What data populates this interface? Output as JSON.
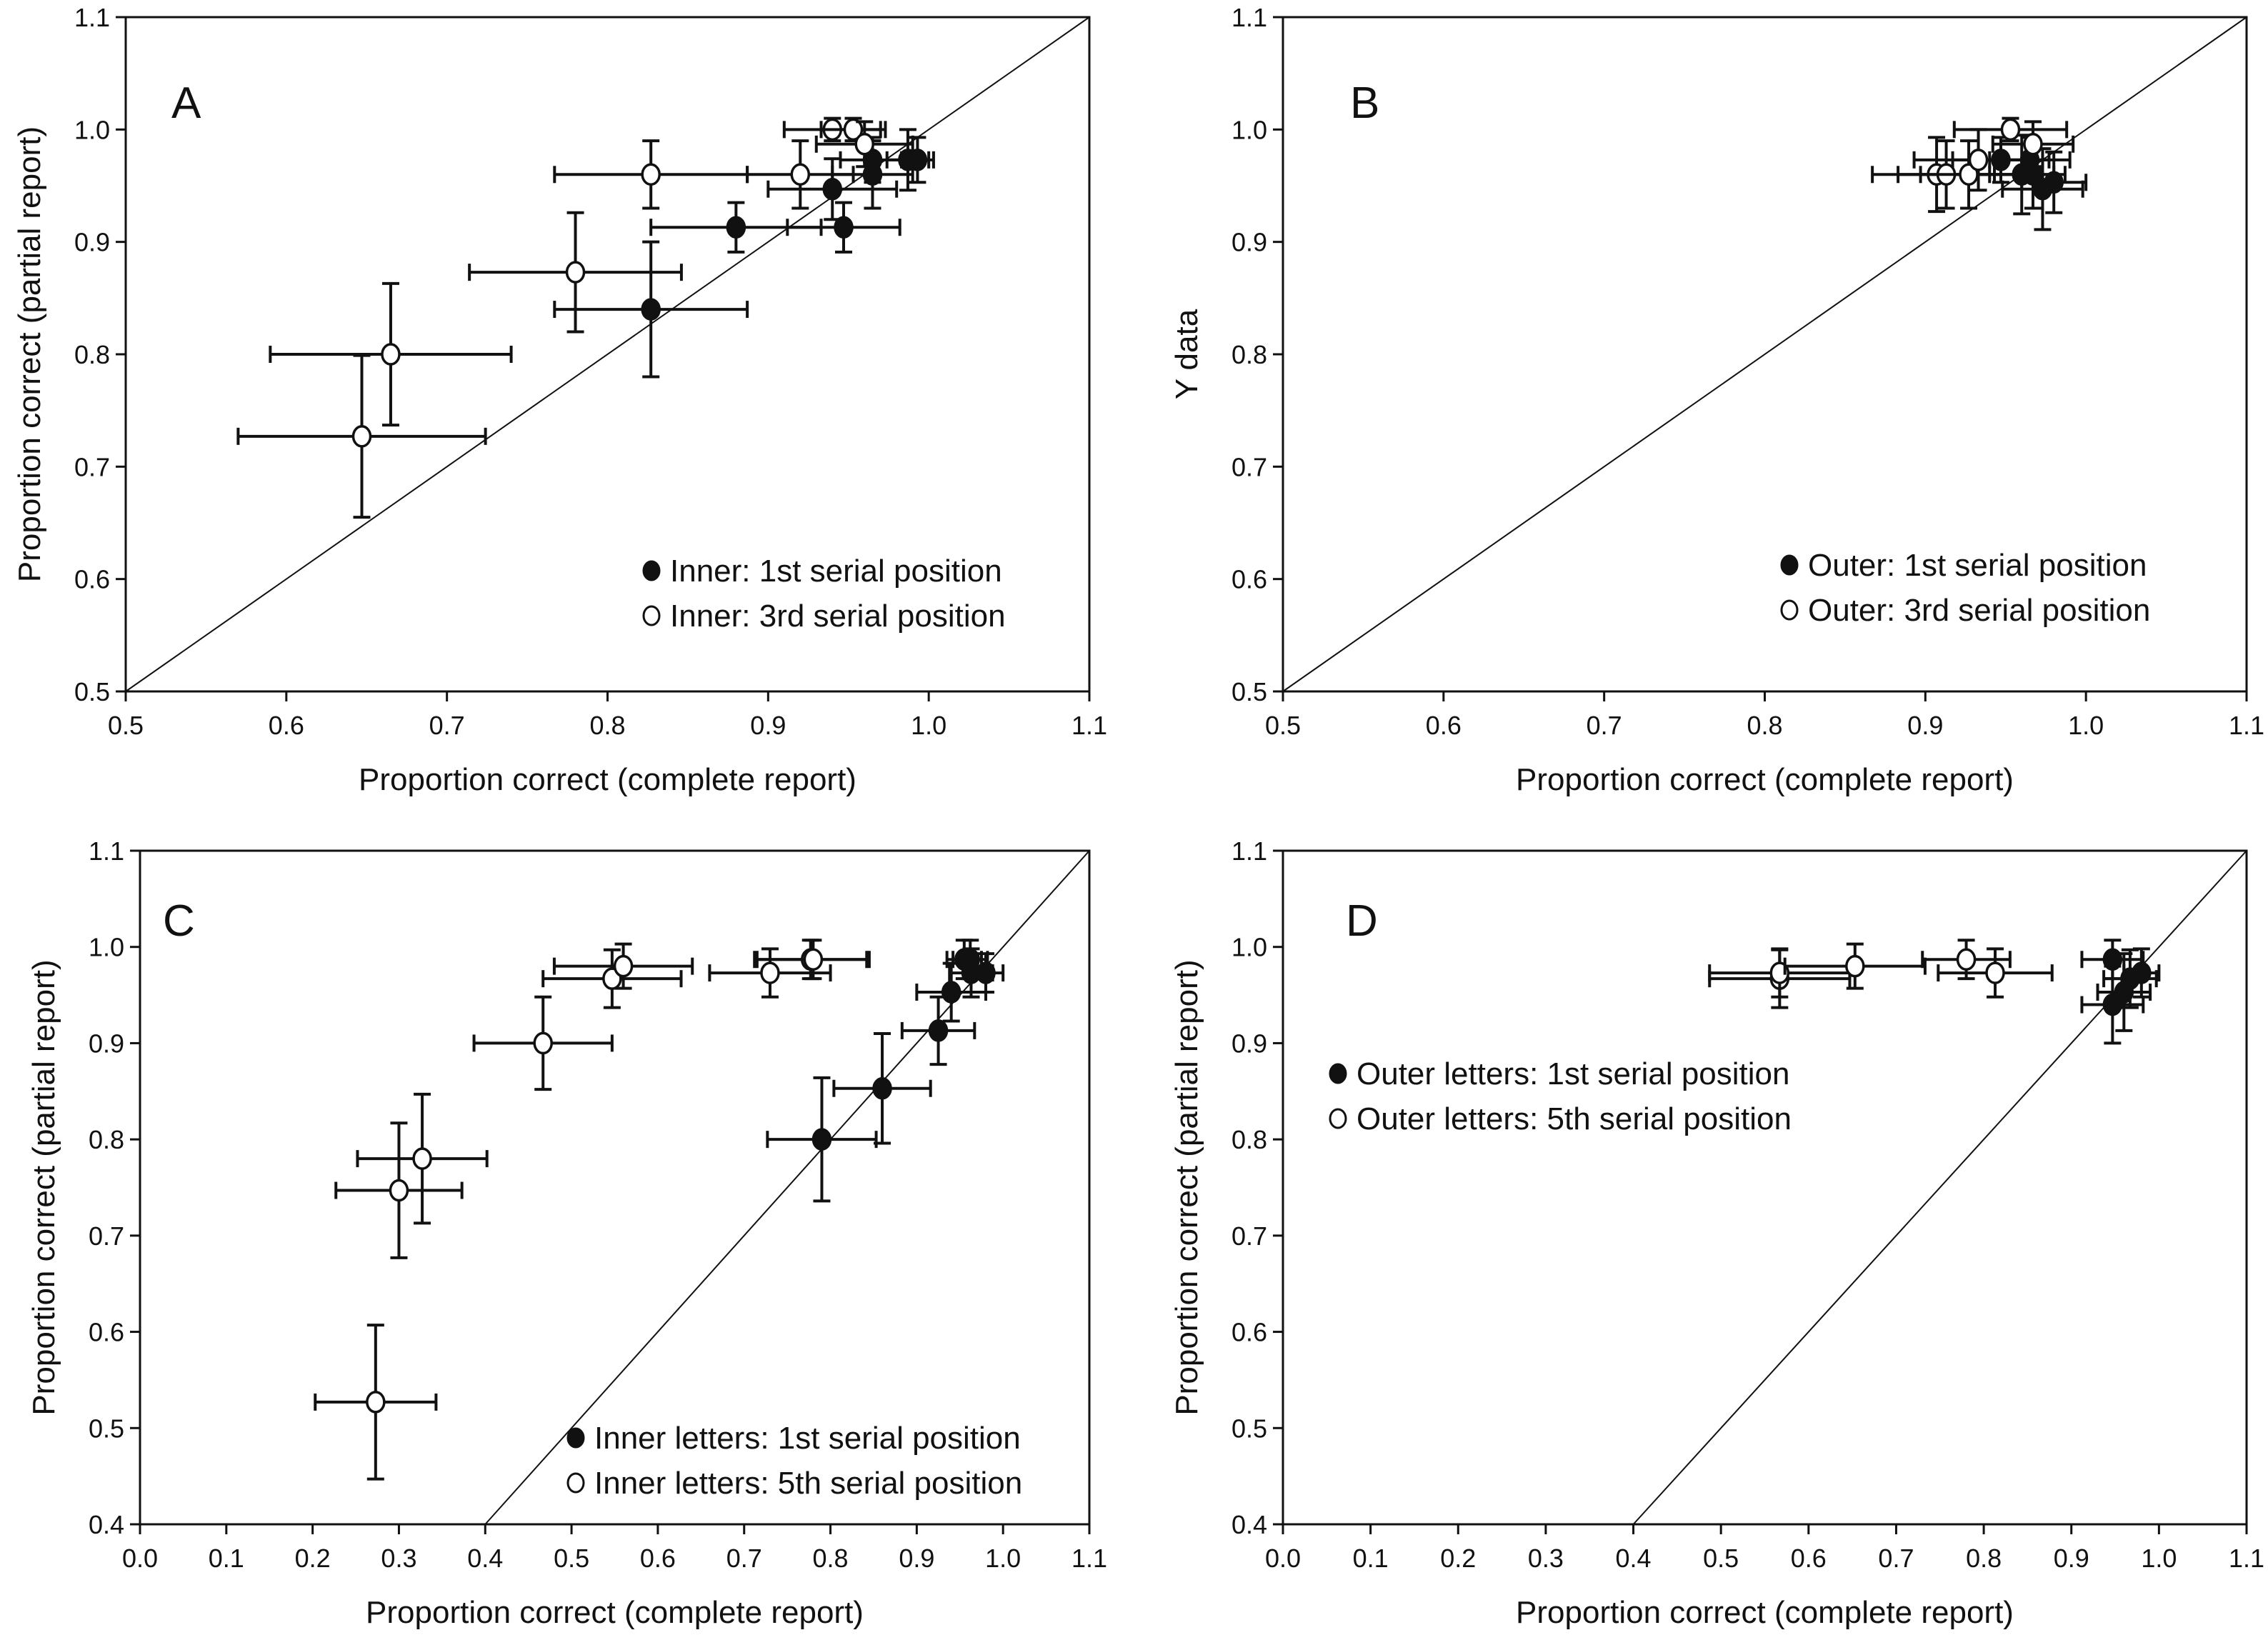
{
  "chart_data": [
    {
      "type": "scatter",
      "panel_label": "A",
      "xlabel": "Proportion correct (complete report)",
      "ylabel": "Proportion correct (partial report)",
      "xlim": [
        0.5,
        1.1
      ],
      "ylim": [
        0.5,
        1.1
      ],
      "xticks": [
        "0.5",
        "0.6",
        "0.7",
        "0.8",
        "0.9",
        "1.0",
        "1.1"
      ],
      "yticks": [
        "0.5",
        "0.6",
        "0.7",
        "0.8",
        "0.9",
        "1.0",
        "1.1"
      ],
      "reference_line": "y = x",
      "legend": "bottom-right",
      "series": [
        {
          "name": "Inner: 1st serial position",
          "marker": "filled",
          "points": [
            [
              0.827,
              0.84,
              0.06,
              0.06
            ],
            [
              0.88,
              0.913,
              0.053,
              0.022
            ],
            [
              0.947,
              0.913,
              0.035,
              0.022
            ],
            [
              0.94,
              0.947,
              0.04,
              0.027
            ],
            [
              0.965,
              0.96,
              0.025,
              0.03
            ],
            [
              0.965,
              0.973,
              0.02,
              0.02
            ],
            [
              0.987,
              0.973,
              0.013,
              0.027
            ],
            [
              0.993,
              0.973,
              0.01,
              0.02
            ]
          ]
        },
        {
          "name": "Inner: 3rd serial position",
          "marker": "open",
          "points": [
            [
              0.647,
              0.727,
              0.077,
              0.072
            ],
            [
              0.665,
              0.8,
              0.075,
              0.063
            ],
            [
              0.78,
              0.873,
              0.066,
              0.053
            ],
            [
              0.827,
              0.96,
              0.06,
              0.03
            ],
            [
              0.92,
              0.96,
              0.033,
              0.03
            ],
            [
              0.94,
              1.0,
              0.03,
              0.01
            ],
            [
              0.953,
              1.0,
              0.02,
              0.01
            ],
            [
              0.96,
              0.987,
              0.03,
              0.02
            ]
          ]
        }
      ]
    },
    {
      "type": "scatter",
      "panel_label": "B",
      "xlabel": "Proportion correct (complete report)",
      "ylabel": "Y data",
      "xlim": [
        0.5,
        1.1
      ],
      "ylim": [
        0.5,
        1.1
      ],
      "xticks": [
        "0.5",
        "0.6",
        "0.7",
        "0.8",
        "0.9",
        "1.0",
        "1.1"
      ],
      "yticks": [
        "0.5",
        "0.6",
        "0.7",
        "0.8",
        "0.9",
        "1.0",
        "1.1"
      ],
      "reference_line": "y = x",
      "legend": "bottom-right",
      "series": [
        {
          "name": "Outer: 1st serial position",
          "marker": "filled",
          "points": [
            [
              0.947,
              0.973,
              0.03,
              0.02
            ],
            [
              0.96,
              0.96,
              0.02,
              0.035
            ],
            [
              0.965,
              0.973,
              0.025,
              0.02
            ],
            [
              0.967,
              0.96,
              0.02,
              0.03
            ],
            [
              0.973,
              0.947,
              0.025,
              0.036
            ],
            [
              0.98,
              0.953,
              0.02,
              0.027
            ]
          ]
        },
        {
          "name": "Outer: 3rd serial position",
          "marker": "open",
          "points": [
            [
              0.907,
              0.96,
              0.04,
              0.033
            ],
            [
              0.913,
              0.96,
              0.03,
              0.03
            ],
            [
              0.927,
              0.96,
              0.03,
              0.03
            ],
            [
              0.933,
              0.973,
              0.04,
              0.027
            ],
            [
              0.953,
              1.0,
              0.035,
              0.01
            ],
            [
              0.967,
              0.987,
              0.025,
              0.02
            ]
          ]
        }
      ]
    },
    {
      "type": "scatter",
      "panel_label": "C",
      "xlabel": "Proportion correct (complete report)",
      "ylabel": "Proportion correct (partial report)",
      "xlim": [
        0.0,
        1.1
      ],
      "ylim": [
        0.4,
        1.1
      ],
      "xticks": [
        "0.0",
        "0.1",
        "0.2",
        "0.3",
        "0.4",
        "0.5",
        "0.6",
        "0.7",
        "0.8",
        "0.9",
        "1.0",
        "1.1"
      ],
      "yticks": [
        "0.4",
        "0.5",
        "0.6",
        "0.7",
        "0.8",
        "0.9",
        "1.0",
        "1.1"
      ],
      "reference_line": "y = x",
      "legend": "bottom-right",
      "series": [
        {
          "name": "Inner letters: 1st serial position",
          "marker": "filled",
          "points": [
            [
              0.79,
              0.8,
              0.063,
              0.064
            ],
            [
              0.86,
              0.853,
              0.056,
              0.057
            ],
            [
              0.925,
              0.913,
              0.042,
              0.035
            ],
            [
              0.94,
              0.953,
              0.04,
              0.03
            ],
            [
              0.955,
              0.987,
              0.02,
              0.02
            ],
            [
              0.962,
              0.987,
              0.02,
              0.02
            ],
            [
              0.963,
              0.973,
              0.025,
              0.025
            ],
            [
              0.98,
              0.973,
              0.02,
              0.02
            ]
          ]
        },
        {
          "name": "Inner letters: 5th serial position",
          "marker": "open",
          "points": [
            [
              0.273,
              0.527,
              0.07,
              0.08
            ],
            [
              0.3,
              0.747,
              0.073,
              0.07
            ],
            [
              0.327,
              0.78,
              0.075,
              0.067
            ],
            [
              0.467,
              0.9,
              0.08,
              0.048
            ],
            [
              0.547,
              0.967,
              0.08,
              0.03
            ],
            [
              0.56,
              0.98,
              0.08,
              0.023
            ],
            [
              0.73,
              0.973,
              0.07,
              0.025
            ],
            [
              0.777,
              0.987,
              0.065,
              0.02
            ],
            [
              0.78,
              0.987,
              0.065,
              0.02
            ]
          ]
        }
      ]
    },
    {
      "type": "scatter",
      "panel_label": "D",
      "xlabel": "Proportion correct (complete report)",
      "ylabel": "Proportion correct (partial report)",
      "xlim": [
        0.0,
        1.1
      ],
      "ylim": [
        0.4,
        1.1
      ],
      "xticks": [
        "0.0",
        "0.1",
        "0.2",
        "0.3",
        "0.4",
        "0.5",
        "0.6",
        "0.7",
        "0.8",
        "0.9",
        "1.0",
        "1.1"
      ],
      "yticks": [
        "0.4",
        "0.5",
        "0.6",
        "0.7",
        "0.8",
        "0.9",
        "1.0",
        "1.1"
      ],
      "reference_line": "y = x",
      "legend": "center-left",
      "series": [
        {
          "name": "Outer letters: 1st serial position",
          "marker": "filled",
          "points": [
            [
              0.947,
              0.94,
              0.035,
              0.04
            ],
            [
              0.947,
              0.987,
              0.035,
              0.02
            ],
            [
              0.96,
              0.953,
              0.03,
              0.04
            ],
            [
              0.967,
              0.967,
              0.03,
              0.03
            ],
            [
              0.98,
              0.973,
              0.02,
              0.025
            ]
          ]
        },
        {
          "name": "Outer letters: 5th serial position",
          "marker": "open",
          "points": [
            [
              0.567,
              0.967,
              0.08,
              0.03
            ],
            [
              0.567,
              0.973,
              0.08,
              0.025
            ],
            [
              0.653,
              0.98,
              0.08,
              0.023
            ],
            [
              0.78,
              0.987,
              0.05,
              0.02
            ],
            [
              0.813,
              0.973,
              0.065,
              0.025
            ]
          ]
        }
      ]
    }
  ]
}
